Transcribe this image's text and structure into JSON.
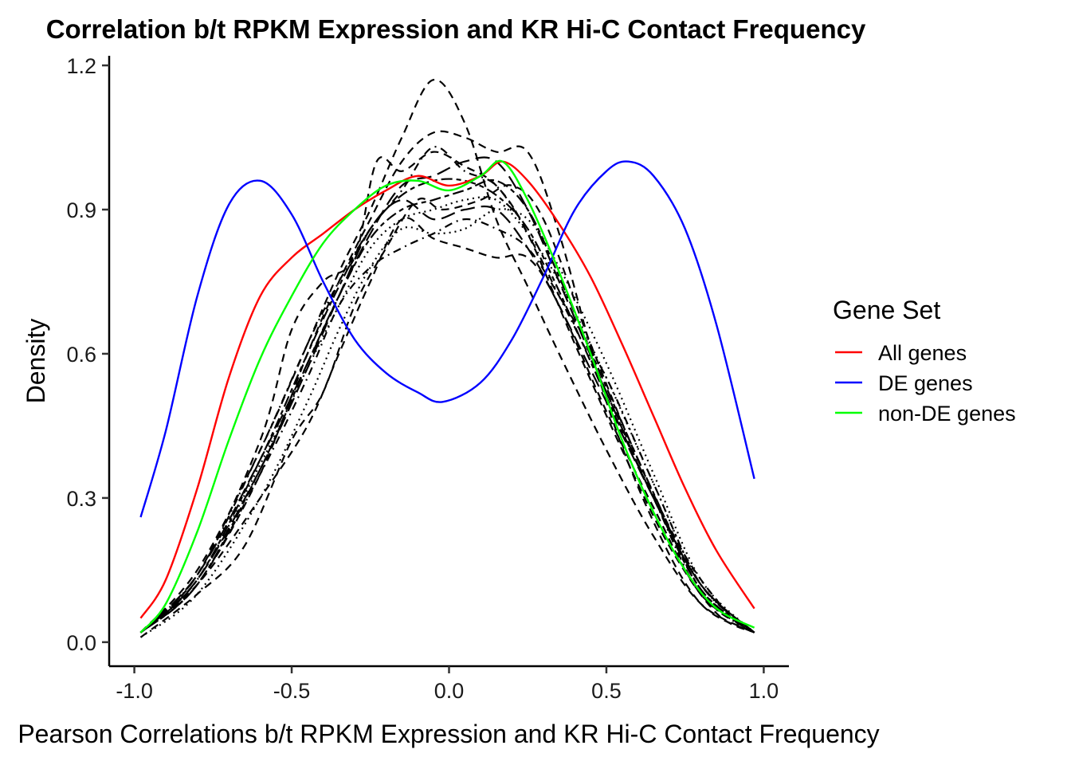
{
  "chart_data": {
    "type": "line",
    "title": "Correlation b/t RPKM Expression and KR Hi-C Contact Frequency",
    "xlabel": "Pearson Correlations b/t RPKM Expression and KR Hi-C Contact Frequency",
    "ylabel": "Density",
    "xlim": [
      -1.08,
      1.08
    ],
    "ylim": [
      -0.05,
      1.22
    ],
    "x_ticks": [
      "-1.0",
      "-0.5",
      "0.0",
      "0.5",
      "1.0"
    ],
    "x_tick_values": [
      -1.0,
      -0.5,
      0.0,
      0.5,
      1.0
    ],
    "y_ticks": [
      "0.0",
      "0.3",
      "0.6",
      "0.9",
      "1.2"
    ],
    "y_tick_values": [
      0.0,
      0.3,
      0.6,
      0.9,
      1.2
    ],
    "grid": false,
    "legend": {
      "title": "Gene Set",
      "position": "right",
      "entries": [
        {
          "label": "All genes",
          "color": "#ff0000"
        },
        {
          "label": "DE genes",
          "color": "#0000ff"
        },
        {
          "label": "non-DE genes",
          "color": "#00ff00"
        }
      ]
    },
    "series": [
      {
        "name": "All genes",
        "color": "#ff0000",
        "style": "solid",
        "x": [
          -0.98,
          -0.9,
          -0.8,
          -0.7,
          -0.6,
          -0.5,
          -0.4,
          -0.3,
          -0.2,
          -0.1,
          0.0,
          0.1,
          0.17,
          0.25,
          0.35,
          0.45,
          0.55,
          0.65,
          0.75,
          0.85,
          0.97
        ],
        "y": [
          0.05,
          0.13,
          0.32,
          0.55,
          0.72,
          0.8,
          0.85,
          0.9,
          0.94,
          0.97,
          0.95,
          0.97,
          1.0,
          0.96,
          0.87,
          0.76,
          0.62,
          0.47,
          0.32,
          0.19,
          0.07
        ]
      },
      {
        "name": "DE genes",
        "color": "#0000ff",
        "style": "solid",
        "x": [
          -0.98,
          -0.9,
          -0.8,
          -0.7,
          -0.6,
          -0.5,
          -0.4,
          -0.3,
          -0.2,
          -0.1,
          -0.02,
          0.1,
          0.2,
          0.3,
          0.4,
          0.5,
          0.57,
          0.65,
          0.75,
          0.85,
          0.97
        ],
        "y": [
          0.26,
          0.44,
          0.72,
          0.91,
          0.96,
          0.89,
          0.75,
          0.63,
          0.56,
          0.52,
          0.5,
          0.54,
          0.63,
          0.76,
          0.9,
          0.98,
          1.0,
          0.97,
          0.86,
          0.66,
          0.34
        ]
      },
      {
        "name": "non-DE genes",
        "color": "#00ff00",
        "style": "solid",
        "x": [
          -0.98,
          -0.9,
          -0.8,
          -0.7,
          -0.6,
          -0.5,
          -0.4,
          -0.3,
          -0.2,
          -0.1,
          0.0,
          0.1,
          0.17,
          0.25,
          0.35,
          0.45,
          0.55,
          0.65,
          0.75,
          0.85,
          0.97
        ],
        "y": [
          0.02,
          0.08,
          0.23,
          0.42,
          0.59,
          0.72,
          0.83,
          0.9,
          0.95,
          0.96,
          0.94,
          0.97,
          1.0,
          0.92,
          0.77,
          0.6,
          0.42,
          0.27,
          0.15,
          0.07,
          0.03
        ]
      },
      {
        "color": "#000000",
        "style": "dashed",
        "x": [
          -0.98,
          -0.8,
          -0.6,
          -0.45,
          -0.35,
          -0.25,
          -0.15,
          -0.05,
          0.05,
          0.15,
          0.25,
          0.35,
          0.5,
          0.65,
          0.8,
          0.97
        ],
        "y": [
          0.02,
          0.15,
          0.4,
          0.62,
          0.77,
          0.9,
          1.05,
          1.17,
          1.08,
          0.88,
          0.74,
          0.6,
          0.4,
          0.22,
          0.08,
          0.02
        ]
      },
      {
        "color": "#000000",
        "style": "dashed",
        "x": [
          -0.98,
          -0.8,
          -0.6,
          -0.45,
          -0.35,
          -0.25,
          -0.15,
          -0.05,
          0.05,
          0.15,
          0.25,
          0.35,
          0.5,
          0.65,
          0.8,
          0.97
        ],
        "y": [
          0.02,
          0.12,
          0.35,
          0.6,
          0.75,
          0.88,
          1.0,
          1.06,
          1.05,
          1.02,
          1.02,
          0.85,
          0.5,
          0.25,
          0.08,
          0.02
        ]
      },
      {
        "color": "#000000",
        "style": "dashed",
        "x": [
          -0.98,
          -0.8,
          -0.6,
          -0.5,
          -0.4,
          -0.3,
          -0.23,
          -0.15,
          -0.05,
          0.05,
          0.15,
          0.25,
          0.4,
          0.55,
          0.7,
          0.85,
          0.97
        ],
        "y": [
          0.02,
          0.14,
          0.42,
          0.65,
          0.75,
          0.8,
          1.0,
          0.98,
          1.02,
          0.99,
          0.95,
          0.85,
          0.62,
          0.4,
          0.2,
          0.06,
          0.02
        ]
      },
      {
        "color": "#000000",
        "style": "dashed",
        "x": [
          -0.98,
          -0.8,
          -0.65,
          -0.5,
          -0.4,
          -0.3,
          -0.2,
          -0.1,
          -0.02,
          0.1,
          0.2,
          0.3,
          0.45,
          0.6,
          0.75,
          0.9,
          0.97
        ],
        "y": [
          0.01,
          0.1,
          0.2,
          0.42,
          0.52,
          0.7,
          0.82,
          0.92,
          0.9,
          0.92,
          0.95,
          0.88,
          0.62,
          0.38,
          0.18,
          0.05,
          0.02
        ]
      },
      {
        "color": "#000000",
        "style": "dashed",
        "x": [
          -0.98,
          -0.8,
          -0.6,
          -0.45,
          -0.35,
          -0.25,
          -0.15,
          -0.05,
          0.05,
          0.15,
          0.25,
          0.35,
          0.5,
          0.65,
          0.8,
          0.97
        ],
        "y": [
          0.02,
          0.12,
          0.3,
          0.45,
          0.6,
          0.75,
          0.88,
          0.84,
          0.82,
          0.8,
          0.8,
          0.7,
          0.48,
          0.28,
          0.1,
          0.02
        ]
      },
      {
        "color": "#000000",
        "style": "longdash",
        "x": [
          -0.98,
          -0.8,
          -0.6,
          -0.45,
          -0.35,
          -0.25,
          -0.15,
          -0.05,
          0.05,
          0.15,
          0.25,
          0.35,
          0.5,
          0.65,
          0.8,
          0.97
        ],
        "y": [
          0.02,
          0.14,
          0.38,
          0.58,
          0.72,
          0.85,
          0.95,
          0.97,
          1.0,
          1.0,
          0.9,
          0.75,
          0.52,
          0.3,
          0.12,
          0.02
        ]
      },
      {
        "color": "#000000",
        "style": "longdash",
        "x": [
          -0.98,
          -0.8,
          -0.6,
          -0.45,
          -0.35,
          -0.25,
          -0.15,
          -0.05,
          0.05,
          0.15,
          0.25,
          0.35,
          0.5,
          0.65,
          0.8,
          0.97
        ],
        "y": [
          0.02,
          0.13,
          0.36,
          0.57,
          0.72,
          0.86,
          0.92,
          0.88,
          0.9,
          0.9,
          0.82,
          0.7,
          0.5,
          0.3,
          0.12,
          0.02
        ]
      },
      {
        "color": "#000000",
        "style": "dotdash",
        "x": [
          -0.98,
          -0.8,
          -0.6,
          -0.45,
          -0.35,
          -0.25,
          -0.15,
          -0.05,
          0.05,
          0.15,
          0.25,
          0.35,
          0.5,
          0.65,
          0.8,
          0.97
        ],
        "y": [
          0.02,
          0.14,
          0.4,
          0.62,
          0.75,
          0.86,
          0.94,
          1.03,
          0.98,
          0.95,
          0.85,
          0.72,
          0.52,
          0.3,
          0.1,
          0.02
        ]
      },
      {
        "color": "#000000",
        "style": "dotdash",
        "x": [
          -0.98,
          -0.8,
          -0.6,
          -0.45,
          -0.35,
          -0.25,
          -0.15,
          -0.05,
          0.05,
          0.15,
          0.25,
          0.35,
          0.5,
          0.65,
          0.8,
          0.97
        ],
        "y": [
          0.02,
          0.12,
          0.35,
          0.55,
          0.7,
          0.78,
          0.82,
          0.85,
          0.88,
          0.86,
          0.82,
          0.72,
          0.55,
          0.33,
          0.12,
          0.02
        ]
      },
      {
        "color": "#000000",
        "style": "dotted",
        "x": [
          -0.98,
          -0.8,
          -0.6,
          -0.45,
          -0.35,
          -0.25,
          -0.15,
          -0.05,
          0.05,
          0.15,
          0.25,
          0.35,
          0.5,
          0.65,
          0.8,
          0.97
        ],
        "y": [
          0.01,
          0.1,
          0.3,
          0.5,
          0.65,
          0.78,
          0.86,
          0.85,
          0.86,
          0.9,
          0.88,
          0.78,
          0.58,
          0.35,
          0.13,
          0.02
        ]
      },
      {
        "color": "#000000",
        "style": "dotted",
        "x": [
          -0.98,
          -0.8,
          -0.6,
          -0.45,
          -0.35,
          -0.25,
          -0.15,
          -0.05,
          0.05,
          0.15,
          0.25,
          0.35,
          0.5,
          0.65,
          0.8,
          0.97
        ],
        "y": [
          0.02,
          0.13,
          0.37,
          0.57,
          0.7,
          0.82,
          0.88,
          0.9,
          0.92,
          0.92,
          0.85,
          0.75,
          0.55,
          0.33,
          0.12,
          0.02
        ]
      },
      {
        "color": "#000000",
        "style": "twodash",
        "x": [
          -0.98,
          -0.8,
          -0.6,
          -0.45,
          -0.35,
          -0.25,
          -0.15,
          -0.05,
          0.05,
          0.15,
          0.25,
          0.35,
          0.5,
          0.65,
          0.8,
          0.97
        ],
        "y": [
          0.02,
          0.13,
          0.38,
          0.6,
          0.74,
          0.86,
          0.93,
          0.96,
          0.96,
          0.93,
          0.86,
          0.73,
          0.51,
          0.3,
          0.11,
          0.02
        ]
      },
      {
        "color": "#000000",
        "style": "twodash",
        "x": [
          -0.98,
          -0.8,
          -0.6,
          -0.45,
          -0.35,
          -0.25,
          -0.15,
          -0.05,
          0.05,
          0.15,
          0.25,
          0.35,
          0.5,
          0.65,
          0.8,
          0.97
        ],
        "y": [
          0.02,
          0.12,
          0.36,
          0.58,
          0.72,
          0.84,
          0.9,
          0.92,
          0.94,
          0.96,
          0.9,
          0.76,
          0.53,
          0.31,
          0.11,
          0.02
        ]
      }
    ]
  }
}
